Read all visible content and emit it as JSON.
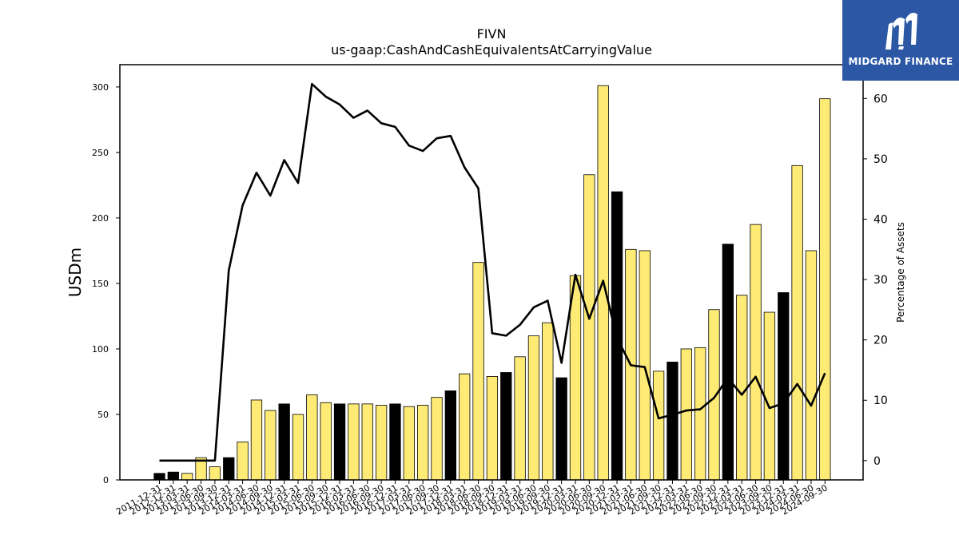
{
  "chart_data": {
    "type": "bar",
    "title": "FIVN",
    "subtitle": "us-gaap:CashAndCashEquivalentsAtCarryingValue",
    "ylabel": "USDm",
    "y2label": "Percentage of Assets",
    "ylim": [
      0,
      317
    ],
    "y2lim": [
      -3.2,
      65.6
    ],
    "yticks": [
      0,
      50,
      100,
      150,
      200,
      250,
      300
    ],
    "y2ticks": [
      0,
      10,
      20,
      30,
      40,
      50,
      60
    ],
    "categories": [
      "2011-12-31",
      "2012-12-31",
      "2013-03-31",
      "2013-06-30",
      "2013-09-30",
      "2013-12-31",
      "2014-03-31",
      "2014-06-30",
      "2014-09-30",
      "2014-12-31",
      "2015-03-31",
      "2015-06-30",
      "2015-09-30",
      "2015-12-31",
      "2016-03-31",
      "2016-06-30",
      "2016-09-30",
      "2016-12-31",
      "2017-03-31",
      "2017-06-30",
      "2017-09-30",
      "2017-12-31",
      "2018-03-31",
      "2018-06-30",
      "2018-09-30",
      "2018-12-31",
      "2019-03-31",
      "2019-06-30",
      "2019-09-30",
      "2019-12-31",
      "2020-03-31",
      "2020-06-30",
      "2020-09-30",
      "2020-12-31",
      "2021-03-31",
      "2021-06-30",
      "2021-09-30",
      "2021-12-31",
      "2022-03-31",
      "2022-06-30",
      "2022-09-30",
      "2022-12-31",
      "2023-03-31",
      "2023-06-30",
      "2023-09-30",
      "2023-12-31",
      "2024-03-31",
      "2024-06-30",
      "2024-09-30"
    ],
    "series": [
      {
        "type": "bar",
        "values": [
          5,
          6,
          5,
          17,
          10,
          17,
          29,
          61,
          53,
          58,
          50,
          65,
          59,
          58,
          58,
          58,
          57,
          58,
          56,
          57,
          63,
          68,
          81,
          166,
          79,
          82,
          94,
          110,
          120,
          78,
          156,
          233,
          301,
          220,
          176,
          175,
          83,
          90,
          100,
          101,
          130,
          180,
          141,
          195,
          128,
          143,
          240,
          175,
          291
        ],
        "annual": [
          true,
          true,
          false,
          false,
          false,
          true,
          false,
          false,
          false,
          true,
          false,
          false,
          false,
          true,
          false,
          false,
          false,
          true,
          false,
          false,
          false,
          true,
          false,
          false,
          false,
          true,
          false,
          false,
          false,
          true,
          false,
          false,
          false,
          true,
          false,
          false,
          false,
          true,
          false,
          false,
          false,
          true,
          false,
          false,
          false,
          true,
          false,
          false,
          false
        ],
        "colors": {
          "annual": "#000000",
          "quarter": "#fdeb75"
        }
      },
      {
        "type": "line",
        "axis": "right",
        "color": "#000000",
        "values": [
          0,
          0,
          0,
          0,
          0,
          31.5,
          42.3,
          47.7,
          43.9,
          49.8,
          46.0,
          62.4,
          60.3,
          59.0,
          56.8,
          58.0,
          55.9,
          55.3,
          52.2,
          51.3,
          53.4,
          53.8,
          48.6,
          45.1,
          21.1,
          20.7,
          22.5,
          25.4,
          26.5,
          16.2,
          30.8,
          23.5,
          29.8,
          20.3,
          15.8,
          15.5,
          7.0,
          7.6,
          8.3,
          8.5,
          10.4,
          13.7,
          10.9,
          13.9,
          8.7,
          9.5,
          12.7,
          9.1,
          14.5
        ]
      }
    ]
  },
  "logo": {
    "text": "MIDGARD FINANCE",
    "bg_color": "#2b57a5",
    "icon": "midgard-finance-logo-icon"
  }
}
